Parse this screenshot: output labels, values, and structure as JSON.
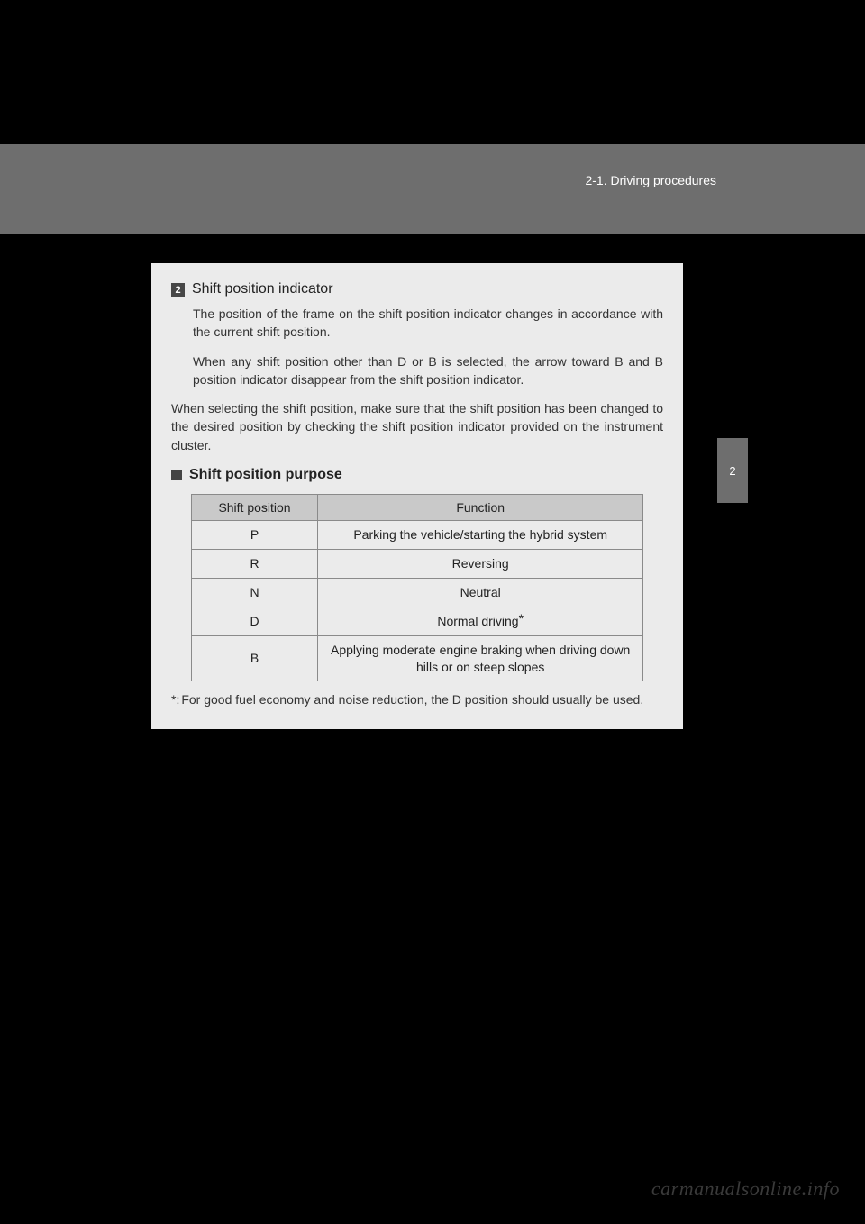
{
  "header": {
    "section_label": "2-1. Driving procedures",
    "side_tab": "2"
  },
  "content": {
    "item_marker": "2",
    "item_title": "Shift position indicator",
    "para1": "The position of the frame on the shift position indicator changes in accordance with the current shift position.",
    "para2": "When any shift position other than D or B is selected, the arrow toward B and B position indicator disappear from the shift position indicator.",
    "para3": "When selecting the shift position, make sure that the shift position has been changed to the desired position by checking the shift position indicator provided on the instrument cluster.",
    "sub_heading": "Shift position purpose",
    "table": {
      "header_left": "Shift position",
      "header_right": "Function",
      "rows": [
        {
          "pos": "P",
          "func": "Parking the vehicle/starting the hybrid system",
          "asterisk": false
        },
        {
          "pos": "R",
          "func": "Reversing",
          "asterisk": false
        },
        {
          "pos": "N",
          "func": "Neutral",
          "asterisk": false
        },
        {
          "pos": "D",
          "func": "Normal driving",
          "asterisk": true
        },
        {
          "pos": "B",
          "func": "Applying moderate engine braking when driving down hills or on steep slopes",
          "asterisk": false
        }
      ]
    },
    "footnote_marker": "*:",
    "footnote_text": "For good fuel economy and noise reduction, the D position should usually be used.",
    "asterisk_symbol": "*"
  },
  "watermark": "carmanualsonline.info"
}
